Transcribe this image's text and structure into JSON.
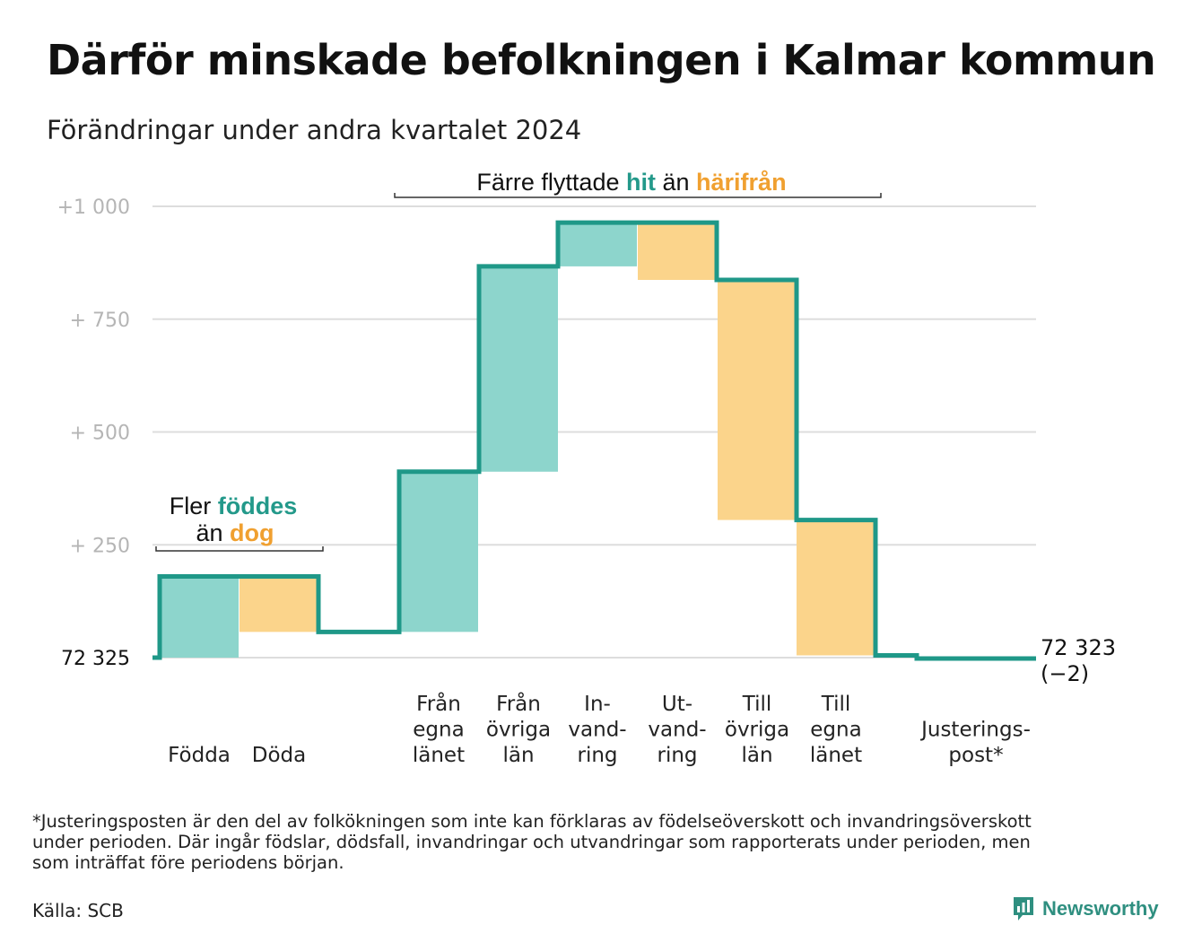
{
  "title": "Därför minskade befolkningen i Kalmar kommun",
  "subtitle": "Förändringar under andra kvartalet 2024",
  "chart_data": {
    "type": "waterfall",
    "base_value": 72325,
    "end_value_label": "72 323",
    "end_change_label": "(−2)",
    "ylim": [
      -15,
      1000
    ],
    "y_ticks": [
      {
        "value": 0,
        "label": "72  325"
      },
      {
        "value": 250,
        "label": "+  250"
      },
      {
        "value": 500,
        "label": "+  500"
      },
      {
        "value": 750,
        "label": "+  750"
      },
      {
        "value": 1000,
        "label": "+1   000"
      }
    ],
    "steps": [
      {
        "lines": [
          "Födda"
        ],
        "change": 180,
        "kind": "in"
      },
      {
        "lines": [
          "Döda"
        ],
        "change": -123,
        "kind": "out"
      },
      {
        "lines": [
          "Från",
          "egna",
          "länet"
        ],
        "change": 355,
        "kind": "in"
      },
      {
        "lines": [
          "Från",
          "övriga",
          "län"
        ],
        "change": 455,
        "kind": "in"
      },
      {
        "lines": [
          "In-",
          "vand-",
          "ring"
        ],
        "change": 97,
        "kind": "in"
      },
      {
        "lines": [
          "Ut-",
          "vand-",
          "ring"
        ],
        "change": -127,
        "kind": "out"
      },
      {
        "lines": [
          "Till",
          "övriga",
          "län"
        ],
        "change": -532,
        "kind": "out"
      },
      {
        "lines": [
          "Till",
          "egna",
          "länet"
        ],
        "change": -300,
        "kind": "out"
      },
      {
        "lines": [
          "Justerings-",
          "post*"
        ],
        "change": -7,
        "kind": "adjust"
      }
    ],
    "annotations": [
      {
        "parts": [
          {
            "text": "Fler ",
            "color": "#111111"
          },
          {
            "text": "föddes",
            "color": "#23998a",
            "bold": true
          }
        ],
        "parts2": [
          {
            "text": "än ",
            "color": "#111111"
          },
          {
            "text": "dog",
            "color": "#f0a030",
            "bold": true
          }
        ]
      },
      {
        "parts": [
          {
            "text": "Färre flyttade ",
            "color": "#111111"
          },
          {
            "text": "hit",
            "color": "#23998a",
            "bold": true
          },
          {
            "text": " än ",
            "color": "#111111"
          },
          {
            "text": "härifrån",
            "color": "#f0a030",
            "bold": true
          }
        ]
      }
    ],
    "colors": {
      "in_fill": "#8dd5cc",
      "out_fill": "#fbd48b",
      "line": "#1f9888",
      "grid": "#dddddd"
    }
  },
  "footnote": [
    "*Justeringsposten är den del av folkökningen som inte kan förklaras av födelseöverskott och invandringsöverskott",
    "under perioden. Där ingår födslar, dödsfall, invandringar och utvandringar som rapporterats under perioden, men",
    "som inträffat före periodens början."
  ],
  "source": "Källa: SCB",
  "logo": {
    "text": "Newsworthy",
    "icon": "bar-chart-logo-icon"
  }
}
